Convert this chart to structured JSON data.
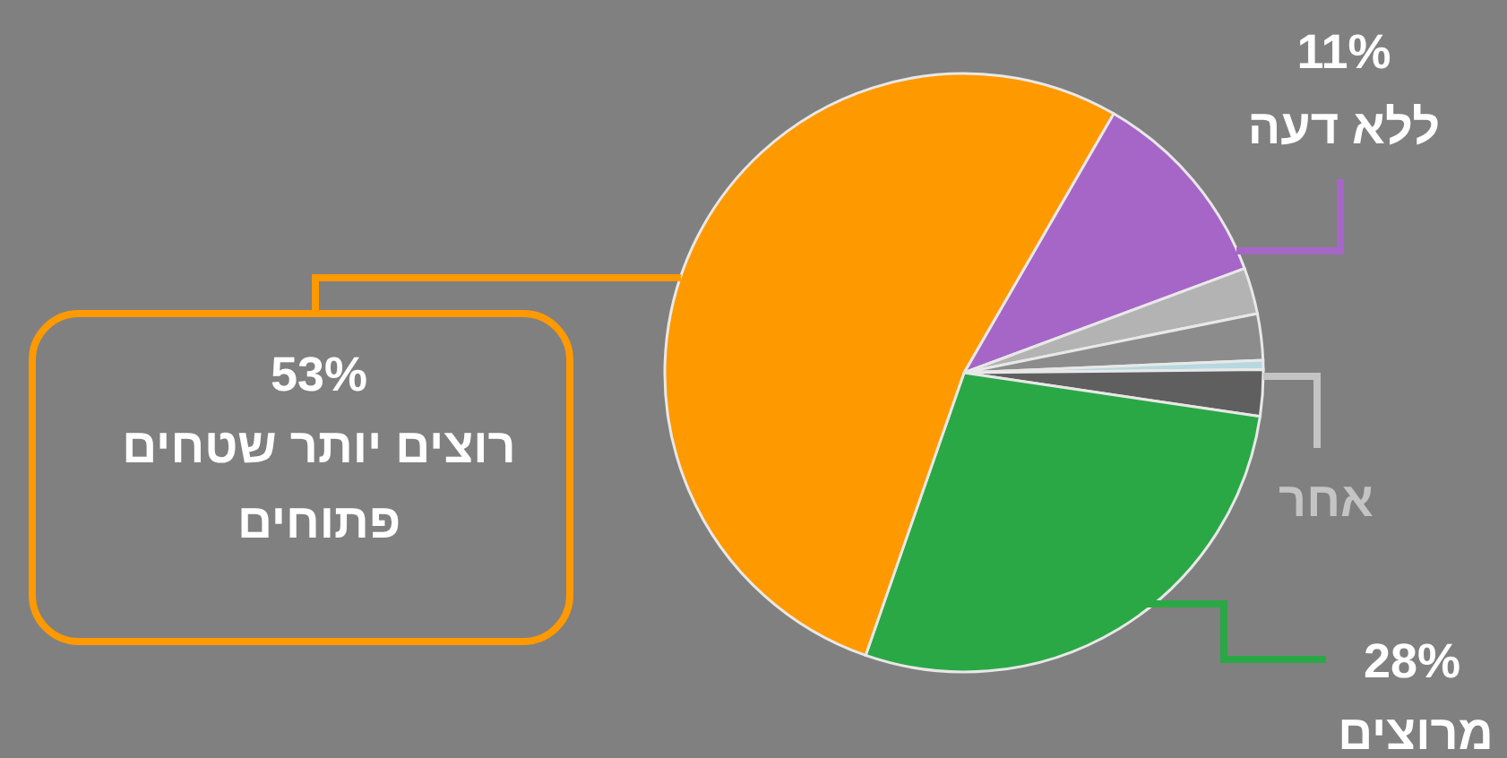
{
  "chart_data": {
    "type": "pie",
    "categories": [
      "ללא דעה",
      null,
      null,
      null,
      null,
      "מרוצים",
      "רוצים יותר שטחים פתוחים"
    ],
    "values": [
      11,
      2.5,
      2.5,
      0.5,
      2.5,
      28,
      53
    ],
    "colors": [
      "#a666c8",
      "#b3b3b3",
      "#8c8c8c",
      "#b8d8e0",
      "#5f5f5f",
      "#2aa845",
      "#ff9900"
    ],
    "value_labels": [
      "11%",
      null,
      null,
      null,
      null,
      "28%",
      "53%"
    ],
    "annotations": [
      "אחר"
    ]
  }
}
